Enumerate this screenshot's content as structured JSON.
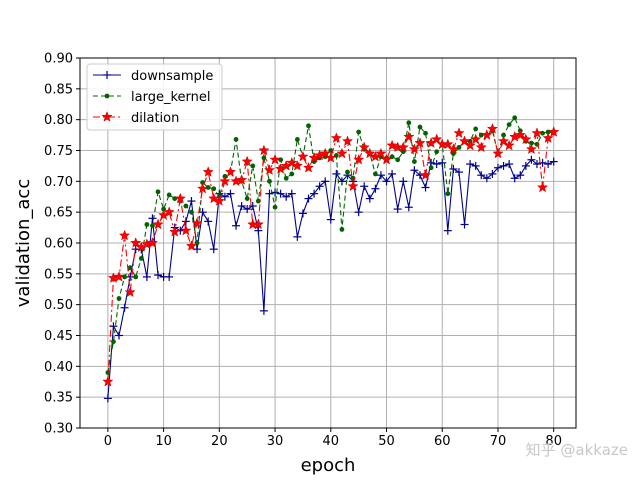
{
  "chart_data": {
    "type": "line",
    "xlabel": "epoch",
    "ylabel": "validation_acc",
    "xlim": [
      -5,
      84
    ],
    "ylim": [
      0.3,
      0.9
    ],
    "xticks": [
      0,
      10,
      20,
      30,
      40,
      50,
      60,
      70,
      80
    ],
    "xtick_labels": [
      "0",
      "10",
      "20",
      "30",
      "40",
      "50",
      "60",
      "70",
      "80"
    ],
    "yticks": [
      0.3,
      0.35,
      0.4,
      0.45,
      0.5,
      0.55,
      0.6,
      0.65,
      0.7,
      0.75,
      0.8,
      0.85,
      0.9
    ],
    "ytick_labels": [
      "0.30",
      "0.35",
      "0.40",
      "0.45",
      "0.50",
      "0.55",
      "0.60",
      "0.65",
      "0.70",
      "0.75",
      "0.80",
      "0.85",
      "0.90"
    ],
    "grid": true,
    "legend_position": "top-left",
    "x": [
      0,
      1,
      2,
      3,
      4,
      5,
      6,
      7,
      8,
      9,
      10,
      11,
      12,
      13,
      14,
      15,
      16,
      17,
      18,
      19,
      20,
      21,
      22,
      23,
      24,
      25,
      26,
      27,
      28,
      29,
      30,
      31,
      32,
      33,
      34,
      35,
      36,
      37,
      38,
      39,
      40,
      41,
      42,
      43,
      44,
      45,
      46,
      47,
      48,
      49,
      50,
      51,
      52,
      53,
      54,
      55,
      56,
      57,
      58,
      59,
      60,
      61,
      62,
      63,
      64,
      65,
      66,
      67,
      68,
      69,
      70,
      71,
      72,
      73,
      74,
      75,
      76,
      77,
      78,
      79,
      80
    ],
    "series": [
      {
        "name": "downsample",
        "color": "#00008b",
        "linestyle": "solid",
        "marker": "plus",
        "values": [
          0.348,
          0.465,
          0.45,
          0.495,
          0.545,
          0.59,
          0.59,
          0.545,
          0.64,
          0.548,
          0.545,
          0.545,
          0.625,
          0.62,
          0.635,
          0.668,
          0.59,
          0.65,
          0.635,
          0.59,
          0.68,
          0.675,
          0.68,
          0.628,
          0.66,
          0.655,
          0.66,
          0.62,
          0.49,
          0.68,
          0.682,
          0.68,
          0.675,
          0.68,
          0.61,
          0.648,
          0.672,
          0.68,
          0.692,
          0.7,
          0.638,
          0.712,
          0.7,
          0.71,
          0.7,
          0.65,
          0.692,
          0.672,
          0.688,
          0.71,
          0.7,
          0.712,
          0.655,
          0.7,
          0.658,
          0.718,
          0.71,
          0.69,
          0.73,
          0.728,
          0.73,
          0.62,
          0.72,
          0.715,
          0.63,
          0.728,
          0.725,
          0.71,
          0.705,
          0.712,
          0.722,
          0.725,
          0.728,
          0.705,
          0.71,
          0.725,
          0.735,
          0.728,
          0.73,
          0.728,
          0.732
        ]
      },
      {
        "name": "large_kernel",
        "color": "#006400",
        "linestyle": "dashed",
        "marker": "circle",
        "values": [
          0.39,
          0.44,
          0.51,
          0.545,
          0.56,
          0.545,
          0.575,
          0.63,
          0.628,
          0.683,
          0.655,
          0.678,
          0.672,
          0.668,
          0.66,
          0.65,
          0.6,
          0.698,
          0.69,
          0.688,
          0.675,
          0.708,
          0.715,
          0.768,
          0.7,
          0.672,
          0.725,
          0.668,
          0.738,
          0.7,
          0.658,
          0.735,
          0.705,
          0.712,
          0.768,
          0.74,
          0.79,
          0.732,
          0.738,
          0.74,
          0.75,
          0.742,
          0.622,
          0.715,
          0.705,
          0.78,
          0.752,
          0.745,
          0.712,
          0.74,
          0.738,
          0.74,
          0.735,
          0.748,
          0.795,
          0.732,
          0.788,
          0.778,
          0.722,
          0.748,
          0.76,
          0.68,
          0.745,
          0.755,
          0.765,
          0.765,
          0.785,
          0.775,
          0.775,
          0.782,
          0.745,
          0.775,
          0.792,
          0.803,
          0.782,
          0.765,
          0.762,
          0.76,
          0.778,
          0.78,
          0.778
        ]
      },
      {
        "name": "dilation",
        "color": "#ff0000",
        "linestyle": "dashdot",
        "marker": "star",
        "values": [
          0.375,
          0.543,
          0.545,
          0.612,
          0.52,
          0.6,
          0.593,
          0.598,
          0.6,
          0.63,
          0.645,
          0.65,
          0.618,
          0.672,
          0.62,
          0.595,
          0.632,
          0.688,
          0.715,
          0.672,
          0.668,
          0.7,
          0.715,
          0.7,
          0.702,
          0.732,
          0.63,
          0.63,
          0.75,
          0.718,
          0.735,
          0.72,
          0.725,
          0.73,
          0.725,
          0.74,
          0.722,
          0.738,
          0.742,
          0.745,
          0.738,
          0.77,
          0.745,
          0.765,
          0.692,
          0.735,
          0.755,
          0.745,
          0.74,
          0.745,
          0.735,
          0.758,
          0.755,
          0.755,
          0.772,
          0.752,
          0.762,
          0.71,
          0.762,
          0.768,
          0.76,
          0.76,
          0.752,
          0.778,
          0.765,
          0.758,
          0.768,
          0.755,
          0.775,
          0.785,
          0.745,
          0.765,
          0.758,
          0.772,
          0.775,
          0.768,
          0.752,
          0.778,
          0.69,
          0.77,
          0.78
        ]
      }
    ]
  },
  "watermark": "知乎 @akkaze"
}
